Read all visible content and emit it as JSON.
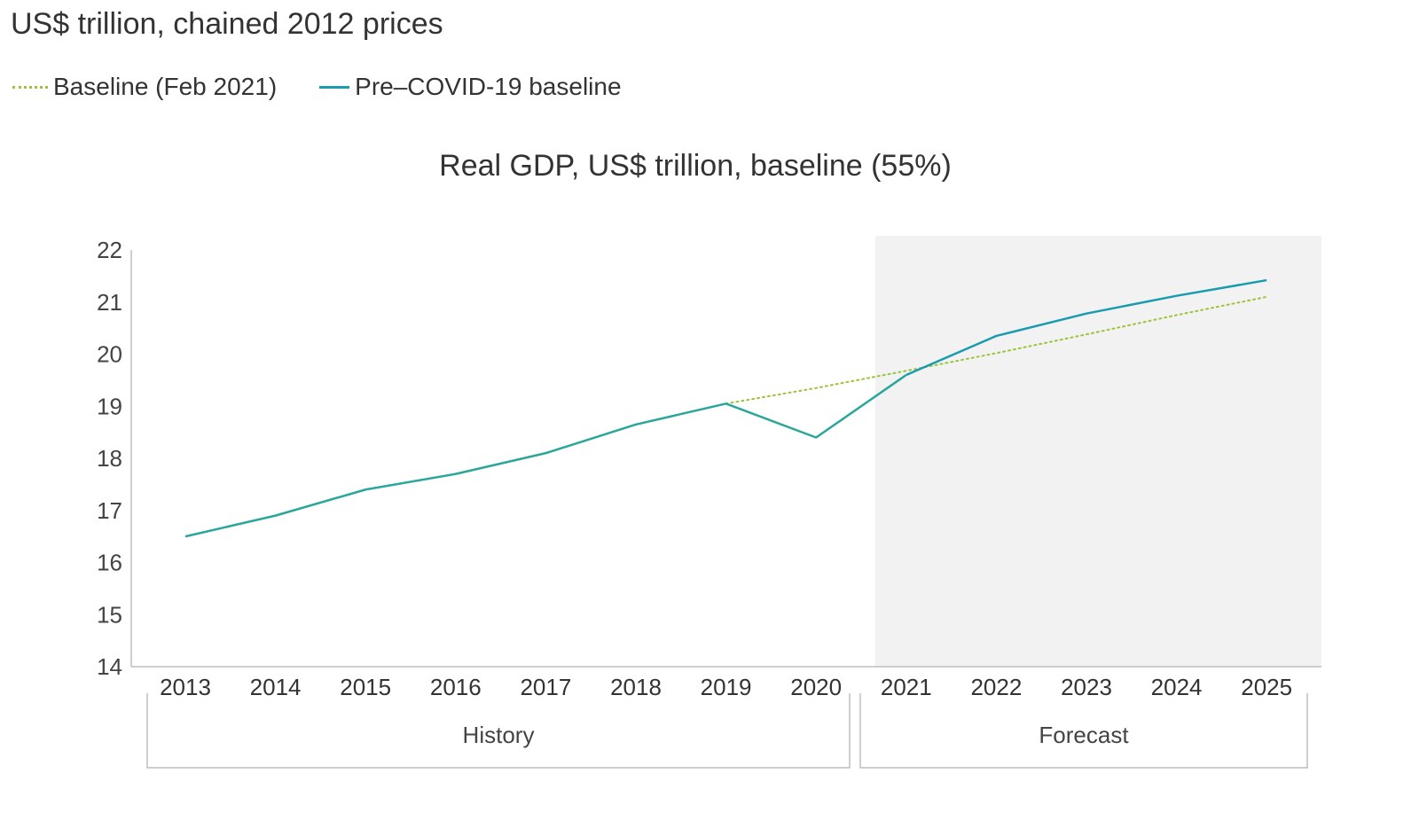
{
  "header": {
    "subtitle": "US$ trillion, chained 2012 prices"
  },
  "legend": {
    "items": [
      {
        "label": "Baseline (Feb 2021)",
        "style": "dotted",
        "color": "#9cc43a"
      },
      {
        "label": "Pre–COVID-19 baseline",
        "style": "solid",
        "color": "#1a9bb0"
      }
    ]
  },
  "chart_data": {
    "type": "line",
    "title": "Real GDP, US$ trillion, baseline (55%)",
    "xlabel": "",
    "ylabel": "",
    "x": [
      "2013",
      "2014",
      "2015",
      "2016",
      "2017",
      "2018",
      "2019",
      "2020",
      "2021",
      "2022",
      "2023",
      "2024",
      "2025"
    ],
    "ylim": [
      14,
      22
    ],
    "yticks": [
      14,
      15,
      16,
      17,
      18,
      19,
      20,
      21,
      22
    ],
    "grid": false,
    "legend_position": "top-left",
    "periods": [
      {
        "label": "History",
        "from": "2013",
        "to": "2020"
      },
      {
        "label": "Forecast",
        "from": "2021",
        "to": "2025",
        "shaded": true,
        "shade_color": "#f2f2f2"
      }
    ],
    "series": [
      {
        "name": "Baseline (Feb 2021)",
        "style": "dotted",
        "color": "#9cc43a",
        "values": [
          null,
          null,
          null,
          null,
          null,
          null,
          19.05,
          19.35,
          19.68,
          20.02,
          20.38,
          20.75,
          21.1
        ]
      },
      {
        "name": "Pre–COVID-19 baseline",
        "style": "solid",
        "color": "#2aa69a",
        "forecast_color": "#1a9bb0",
        "values": [
          16.5,
          16.9,
          17.4,
          17.7,
          18.1,
          18.65,
          19.05,
          18.4,
          19.6,
          20.35,
          20.78,
          21.12,
          21.42
        ]
      }
    ]
  }
}
